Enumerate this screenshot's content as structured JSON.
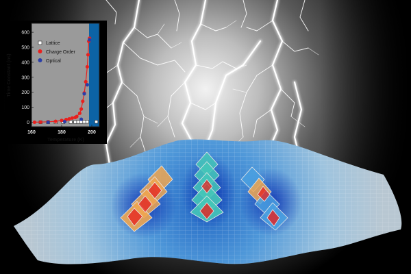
{
  "inset_chart": {
    "chart_data": {
      "type": "scatter",
      "xlabel": "Temperature (K)",
      "ylabel": "Time Constant (ns)",
      "xlim": [
        160,
        205
      ],
      "ylim": [
        -30,
        660
      ],
      "x_ticks": [
        "160",
        "180",
        "200"
      ],
      "y_ticks": [
        "0",
        "100",
        "200",
        "300",
        "400",
        "500",
        "600"
      ],
      "legend_position": "top-left",
      "series": [
        {
          "name": "Lattice",
          "marker": "open-square",
          "color": "#ffffff",
          "points": [
            [
              166,
              0
            ],
            [
              171,
              0
            ],
            [
              176,
              0
            ],
            [
              181,
              1
            ],
            [
              186,
              1
            ],
            [
              189,
              1
            ],
            [
              191,
              2
            ],
            [
              193,
              2
            ],
            [
              195,
              3
            ],
            [
              197,
              3
            ],
            [
              203,
              3
            ]
          ]
        },
        {
          "name": "Charge Order",
          "marker": "circle",
          "color": "#e8201e",
          "points": [
            [
              162,
              0
            ],
            [
              166,
              1
            ],
            [
              171,
              3
            ],
            [
              176,
              6
            ],
            [
              180,
              12
            ],
            [
              183,
              18
            ],
            [
              185,
              22
            ],
            [
              187,
              28
            ],
            [
              189,
              32
            ],
            [
              190,
              38
            ],
            [
              192,
              60
            ],
            [
              193,
              88
            ],
            [
              194,
              140
            ],
            [
              195,
              195
            ],
            [
              196,
              270
            ],
            [
              197,
              370
            ],
            [
              197.5,
              450
            ],
            [
              198,
              540
            ],
            [
              198.5,
              560
            ]
          ]
        },
        {
          "name": "Optical",
          "marker": "circle",
          "color": "#2a3ea8",
          "points": [
            [
              171,
              0
            ],
            [
              182,
              4
            ],
            [
              193,
              20
            ],
            [
              195,
              190
            ],
            [
              197,
              250
            ],
            [
              198.5,
              550
            ]
          ]
        }
      ]
    }
  },
  "colors": {
    "background": "#000000",
    "inset_plot_bg": "#9a9a9a",
    "inset_blue_region": "#0c63a5",
    "charge_order": "#e8201e",
    "optical": "#2a3ea8",
    "membrane": "#3d8fd8",
    "octahedra_orange": "#f0a650",
    "octahedra_teal": "#45c7b8",
    "octahedra_blue": "#4aa0e0"
  }
}
